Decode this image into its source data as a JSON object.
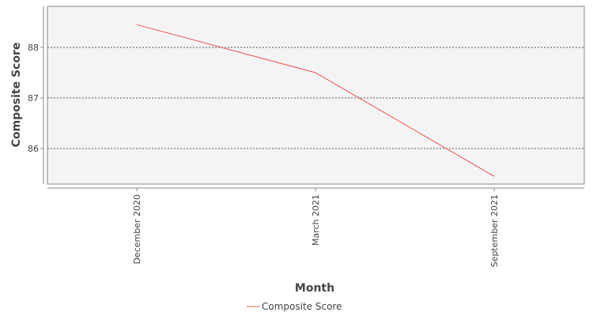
{
  "chart_data": {
    "type": "line",
    "title": "",
    "xlabel": "Month",
    "ylabel": "Composite Score",
    "categories": [
      "December 2020",
      "March 2021",
      "September 2021"
    ],
    "series": [
      {
        "name": "Composite Score",
        "values": [
          88.45,
          87.5,
          85.45
        ],
        "color": "#f0504a"
      }
    ],
    "yticks": [
      86,
      87,
      88
    ],
    "ylim": [
      85.3,
      88.8
    ],
    "grid": true,
    "legend": "bottom-center",
    "colors": {
      "plot_background": "#f4f4f4",
      "grid": "#555555",
      "axis_text": "#444444"
    }
  }
}
